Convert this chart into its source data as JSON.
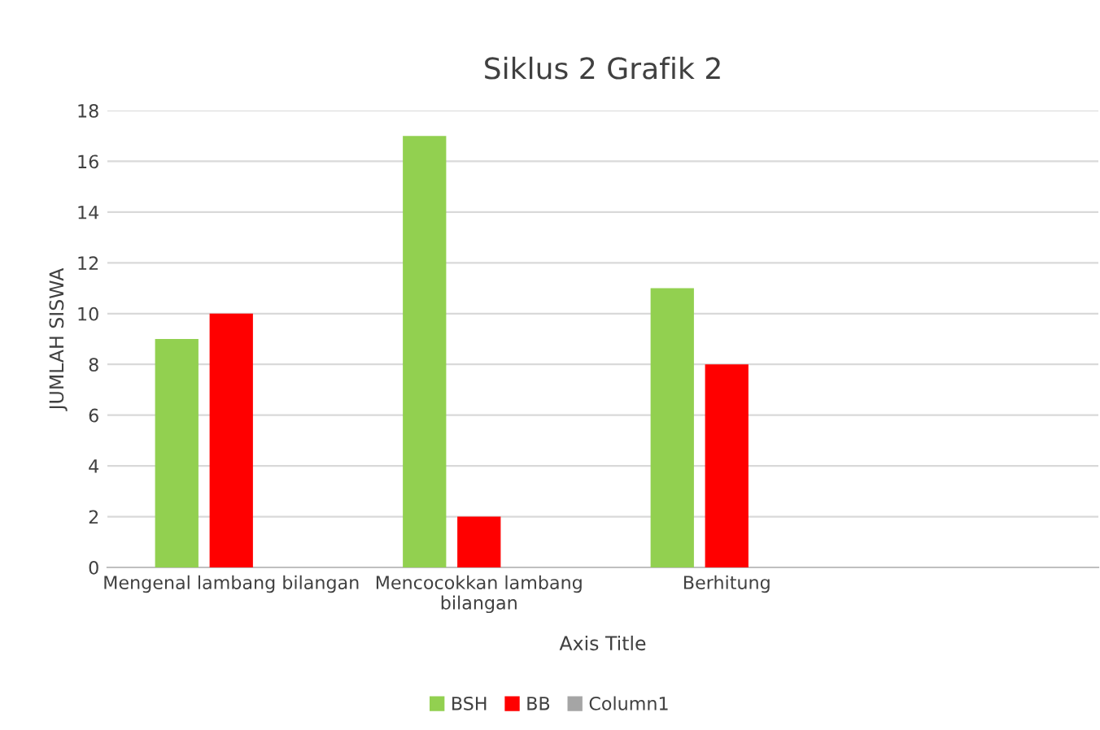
{
  "chart_data": {
    "type": "bar",
    "title": "Siklus 2 Grafik 2",
    "xlabel": "Axis Title",
    "ylabel": "JUMLAH SISWA",
    "categories": [
      "Mengenal lambang bilangan",
      "Mencocokkan lambang bilangan",
      "Berhitung",
      null
    ],
    "series": [
      {
        "name": "BSH",
        "color": "#92d050",
        "values": [
          9,
          17,
          11,
          null
        ]
      },
      {
        "name": "BB",
        "color": "#ff0000",
        "values": [
          10,
          2,
          8,
          null
        ]
      },
      {
        "name": "Column1",
        "color": "#a5a5a5",
        "values": [
          null,
          null,
          null,
          null
        ]
      }
    ],
    "ylim": [
      0,
      18
    ],
    "yticks": [
      0,
      2,
      4,
      6,
      8,
      10,
      12,
      14,
      16,
      18
    ],
    "grid": "y",
    "legend": "bottom"
  }
}
